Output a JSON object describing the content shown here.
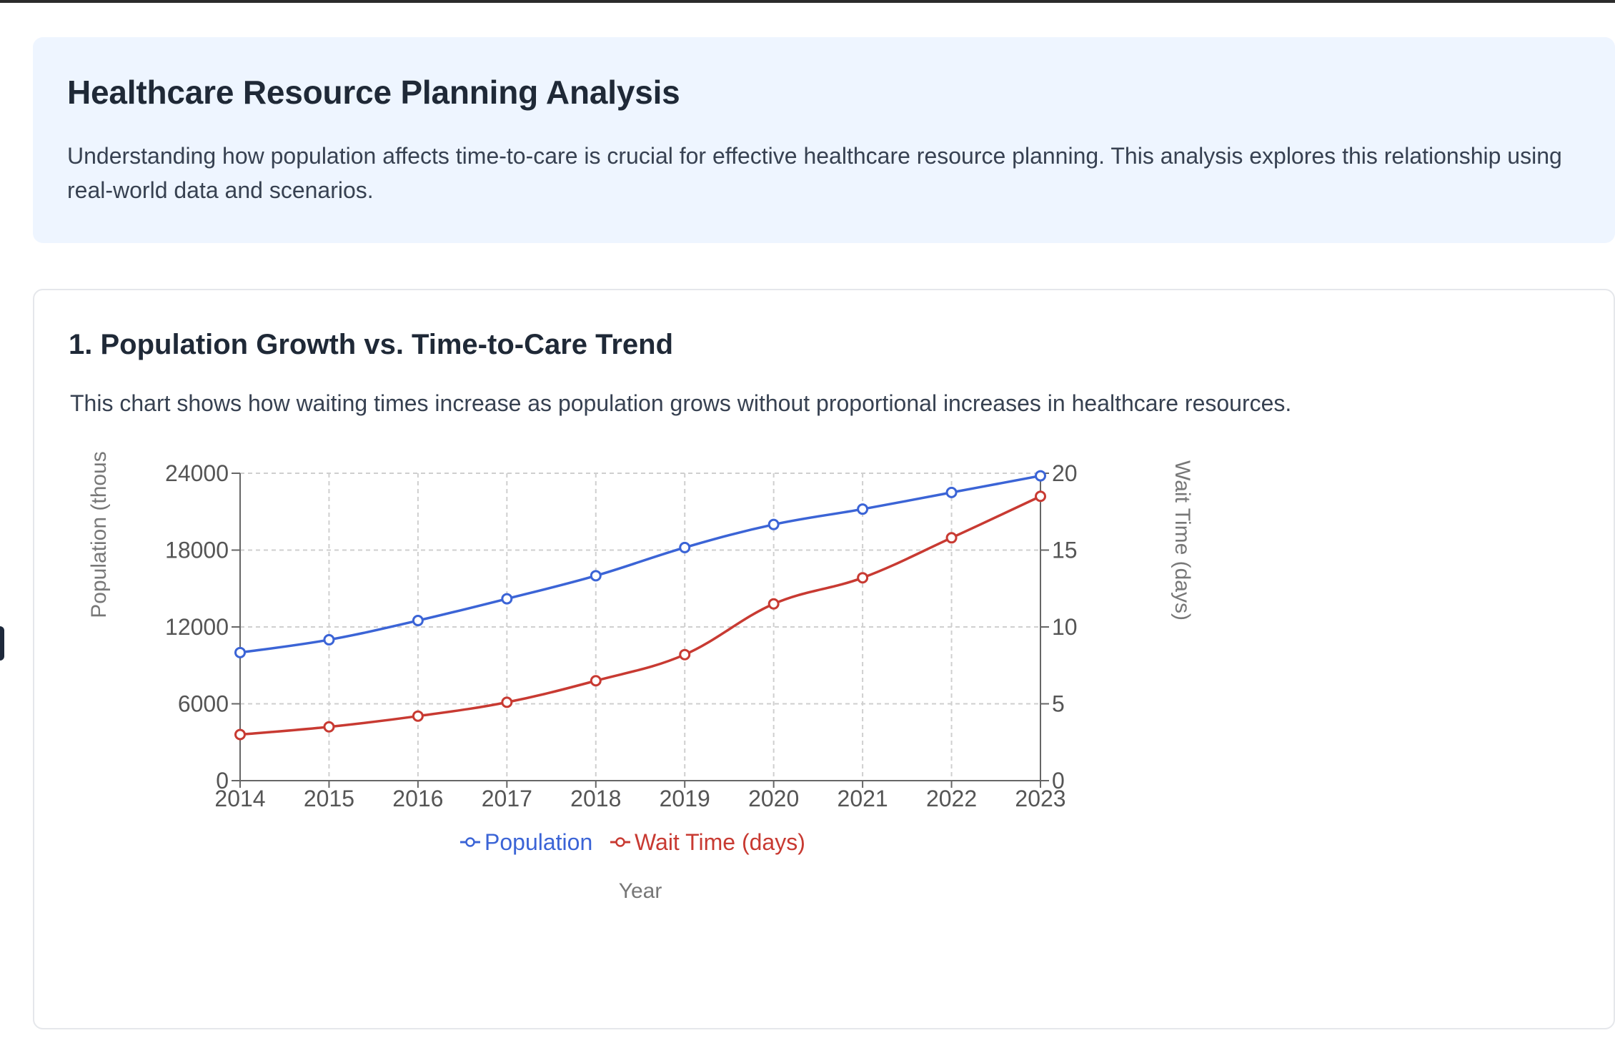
{
  "intro": {
    "title": "Healthcare Resource Planning Analysis",
    "description": "Understanding how population affects time-to-care is crucial for effective healthcare resource planning. This analysis explores this relationship using real-world data and scenarios."
  },
  "section1": {
    "title": "1. Population Growth vs. Time-to-Care Trend",
    "description": "This chart shows how waiting times increase as population grows without proportional increases in healthcare resources."
  },
  "colors": {
    "population": "#3b64d6",
    "wait_time": "#c83a32",
    "grid": "#cfcfcf",
    "axis": "#666666",
    "intro_bg": "#eef5ff"
  },
  "chart_data": {
    "type": "line",
    "x": [
      2014,
      2015,
      2016,
      2017,
      2018,
      2019,
      2020,
      2021,
      2022,
      2023
    ],
    "xlabel": "Year",
    "ylabel_left": "Population (thous",
    "ylabel_right": "Wait Time (days)",
    "ylim_left": [
      0,
      24000
    ],
    "ylim_right": [
      0,
      20
    ],
    "yticks_left": [
      0,
      6000,
      12000,
      18000,
      24000
    ],
    "yticks_right": [
      0,
      5,
      10,
      15,
      20
    ],
    "grid": true,
    "legend_placement": "bottom",
    "series": [
      {
        "name": "Population",
        "axis": "left",
        "values": [
          10000,
          11000,
          12500,
          14200,
          16000,
          18200,
          20000,
          21200,
          22500,
          23800
        ]
      },
      {
        "name": "Wait Time (days)",
        "axis": "right",
        "values": [
          3.0,
          3.5,
          4.2,
          5.1,
          6.5,
          8.2,
          11.5,
          13.2,
          15.8,
          18.5
        ]
      }
    ]
  }
}
